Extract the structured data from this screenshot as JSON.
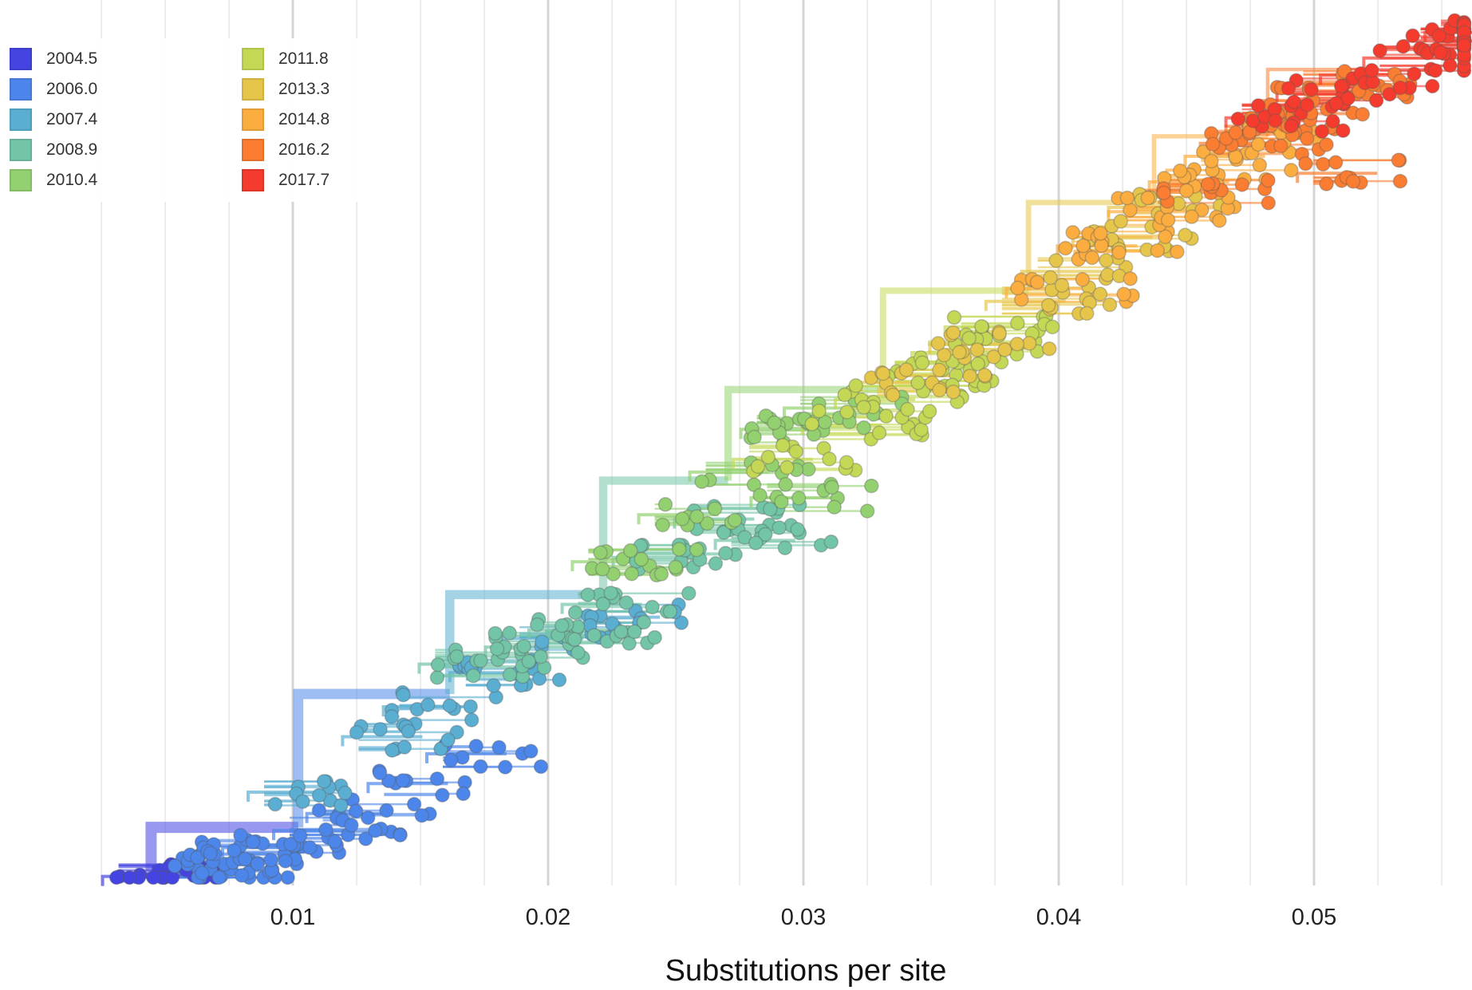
{
  "legend": {
    "title": "",
    "items": [
      {
        "label": "2004.5",
        "color": "#4444e3"
      },
      {
        "label": "2006.0",
        "color": "#4c86ea"
      },
      {
        "label": "2007.4",
        "color": "#59aed2"
      },
      {
        "label": "2008.9",
        "color": "#72c5a6"
      },
      {
        "label": "2010.4",
        "color": "#93d170"
      },
      {
        "label": "2011.8",
        "color": "#c4d855"
      },
      {
        "label": "2013.3",
        "color": "#e6c64a"
      },
      {
        "label": "2014.8",
        "color": "#fbad3f"
      },
      {
        "label": "2016.2",
        "color": "#fb7d31"
      },
      {
        "label": "2017.7",
        "color": "#f43b2d"
      }
    ]
  },
  "axis": {
    "title": "Substitutions per site",
    "ticks": [
      "0.01",
      "0.02",
      "0.03",
      "0.04",
      "0.05"
    ]
  },
  "chart_data": {
    "type": "scatter",
    "title": "",
    "xlabel": "Substitutions per site",
    "ylabel": "",
    "xlim": [
      0.0,
      0.0565
    ],
    "grid": true,
    "legend_position": "top-left",
    "series": [
      {
        "name": "2004.5",
        "x": [
          0.0038,
          0.0051
        ],
        "y": [
          0.5,
          1.5
        ]
      },
      {
        "name": "2006.0",
        "x": [
          0.0062,
          0.0068,
          0.0072,
          0.0085,
          0.0105,
          0.0118,
          0.0142,
          0.0165
        ],
        "y": [
          3,
          6,
          11,
          14,
          22,
          30,
          44,
          58
        ]
      },
      {
        "name": "2007.4",
        "x": [
          0.0095,
          0.0132,
          0.0148,
          0.0174,
          0.0195,
          0.0225
        ],
        "y": [
          40,
          66,
          80,
          96,
          112,
          122
        ]
      },
      {
        "name": "2008.9",
        "x": [
          0.0162,
          0.0188,
          0.0205,
          0.0218,
          0.0238,
          0.0262,
          0.0278
        ],
        "y": [
          100,
          108,
          116,
          128,
          150,
          168,
          158
        ]
      },
      {
        "name": "2010.4",
        "x": [
          0.0222,
          0.0248,
          0.0268,
          0.0288,
          0.0305,
          0.0292
        ],
        "y": [
          148,
          170,
          190,
          210,
          220,
          178
        ]
      },
      {
        "name": "2011.8",
        "x": [
          0.0285,
          0.0312,
          0.0325,
          0.0342,
          0.0355,
          0.0368
        ],
        "y": [
          196,
          212,
          224,
          236,
          246,
          258
        ]
      },
      {
        "name": "2013.3",
        "x": [
          0.0335,
          0.0362,
          0.0384,
          0.0398,
          0.0418,
          0.0432
        ],
        "y": [
          232,
          250,
          270,
          284,
          300,
          314
        ]
      },
      {
        "name": "2014.8",
        "x": [
          0.0392,
          0.0412,
          0.0432,
          0.0448,
          0.0462,
          0.0478
        ],
        "y": [
          276,
          296,
          312,
          326,
          338,
          350
        ]
      },
      {
        "name": "2016.2",
        "x": [
          0.0445,
          0.0468,
          0.0478,
          0.0492,
          0.0502,
          0.0506
        ],
        "y": [
          322,
          344,
          352,
          364,
          372,
          330
        ]
      },
      {
        "name": "2017.7",
        "x": [
          0.0478,
          0.0498,
          0.0515,
          0.0532,
          0.0548,
          0.0556
        ],
        "y": [
          356,
          368,
          376,
          384,
          392,
          396
        ]
      }
    ]
  }
}
